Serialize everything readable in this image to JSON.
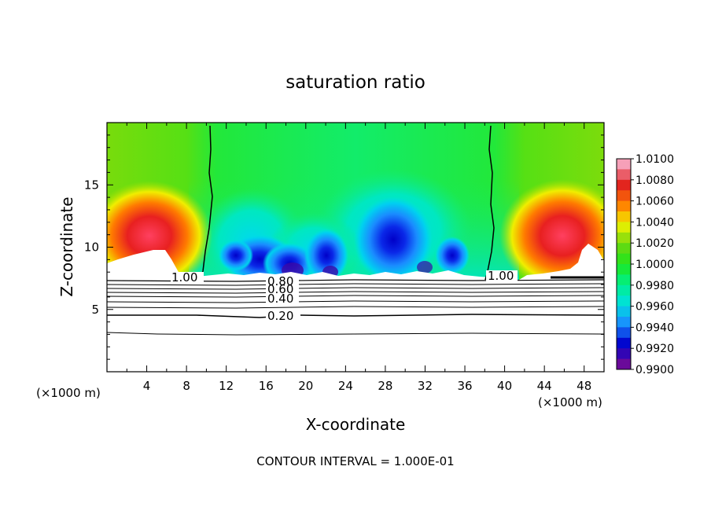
{
  "chart_data": {
    "type": "heatmap",
    "title": "saturation ratio",
    "xlabel": "X-coordinate",
    "ylabel": "Z-coordinate",
    "x_unit_left": "(×1000 m)",
    "x_unit_right": "(×1000 m)",
    "xlim": [
      0,
      50
    ],
    "ylim": [
      0,
      20
    ],
    "x_ticks": [
      "4",
      "8",
      "12",
      "16",
      "20",
      "24",
      "28",
      "32",
      "36",
      "40",
      "44",
      "48"
    ],
    "y_ticks": [
      "5",
      "10",
      "15"
    ],
    "footer": "CONTOUR INTERVAL = 1.000E-01",
    "colorbar": {
      "labels": [
        "1.0100",
        "1.0080",
        "1.0060",
        "1.0040",
        "1.0020",
        "1.0000",
        "0.9980",
        "0.9960",
        "0.9940",
        "0.9920",
        "0.9900"
      ],
      "colors": [
        "#f6a0b8",
        "#e02020",
        "#ff7a00",
        "#f2f200",
        "#6ed810",
        "#1ee61e",
        "#00f08a",
        "#00e0e0",
        "#1a8cff",
        "#0000cc",
        "#6a0a9a"
      ]
    },
    "contour_labels": [
      "1.00",
      "0.80",
      "0.60",
      "0.40",
      "0.20",
      "1.00"
    ]
  }
}
